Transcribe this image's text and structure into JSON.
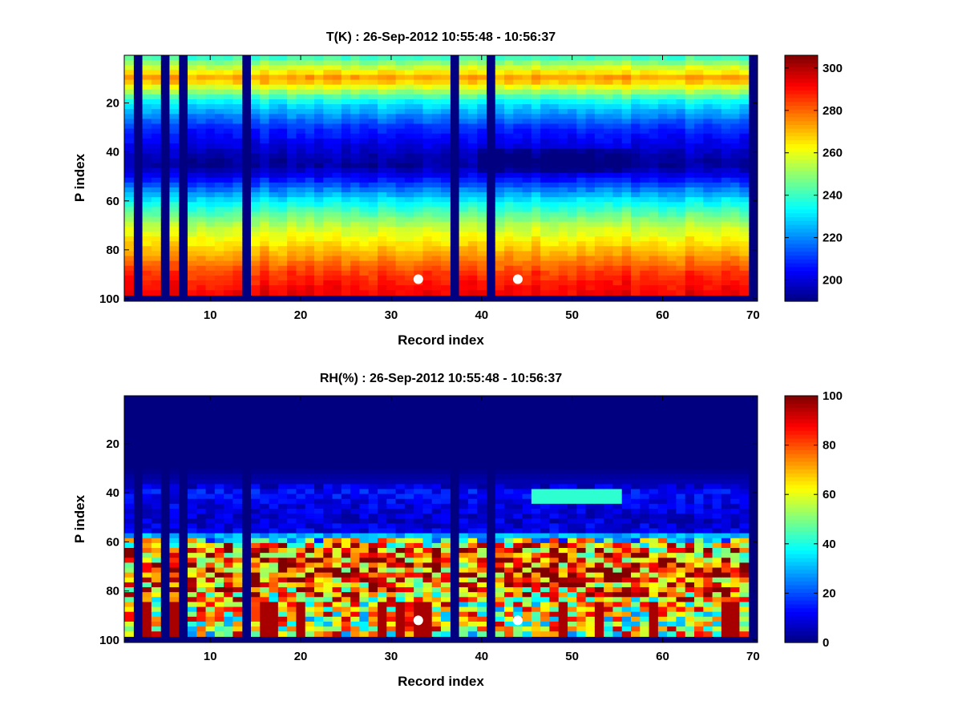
{
  "chart_data": [
    {
      "type": "heatmap",
      "id": "temperature",
      "title": "T(K) : 26-Sep-2012 10:55:48 - 10:56:37",
      "xlabel": "Record index",
      "ylabel": "P index",
      "xlim": [
        0.5,
        70.5
      ],
      "ylim": [
        0.5,
        101
      ],
      "y_reversed": true,
      "xticks": [
        10,
        20,
        30,
        40,
        50,
        60,
        70
      ],
      "yticks": [
        20,
        40,
        60,
        80,
        100
      ],
      "colormap": "jet",
      "clim": [
        190,
        306
      ],
      "colorbar_ticks": [
        200,
        220,
        240,
        260,
        280,
        300
      ],
      "missing_records": [
        2,
        5,
        7,
        14,
        37,
        41,
        70
      ],
      "valid_p_range": [
        1,
        98
      ],
      "profile_p": [
        1,
        10,
        20,
        30,
        40,
        45,
        50,
        60,
        70,
        80,
        90,
        98
      ],
      "profile_values": [
        240,
        275,
        232,
        210,
        198,
        193,
        203,
        232,
        255,
        270,
        286,
        293
      ],
      "markers": [
        {
          "x": 33,
          "y": 92
        },
        {
          "x": 44,
          "y": 92
        }
      ]
    },
    {
      "type": "heatmap",
      "id": "humidity",
      "title": "RH(%) : 26-Sep-2012 10:55:48 - 10:56:37",
      "xlabel": "Record index",
      "ylabel": "P index",
      "xlim": [
        0.5,
        70.5
      ],
      "ylim": [
        0.5,
        101
      ],
      "y_reversed": true,
      "xticks": [
        10,
        20,
        30,
        40,
        50,
        60,
        70
      ],
      "yticks": [
        20,
        40,
        60,
        80,
        100
      ],
      "colormap": "jet",
      "clim": [
        0,
        100
      ],
      "colorbar_ticks": [
        0,
        20,
        40,
        60,
        80,
        100
      ],
      "missing_records": [
        2,
        5,
        7,
        14,
        37,
        41,
        70
      ],
      "valid_p_range": [
        1,
        98
      ],
      "profile_p": [
        1,
        30,
        36,
        40,
        45,
        50,
        56,
        58,
        62,
        68,
        75,
        85,
        98
      ],
      "profile_values": [
        0,
        0,
        5,
        14,
        10,
        8,
        10,
        35,
        72,
        78,
        82,
        62,
        60
      ],
      "markers": [
        {
          "x": 33,
          "y": 92
        },
        {
          "x": 44,
          "y": 92
        }
      ]
    }
  ]
}
